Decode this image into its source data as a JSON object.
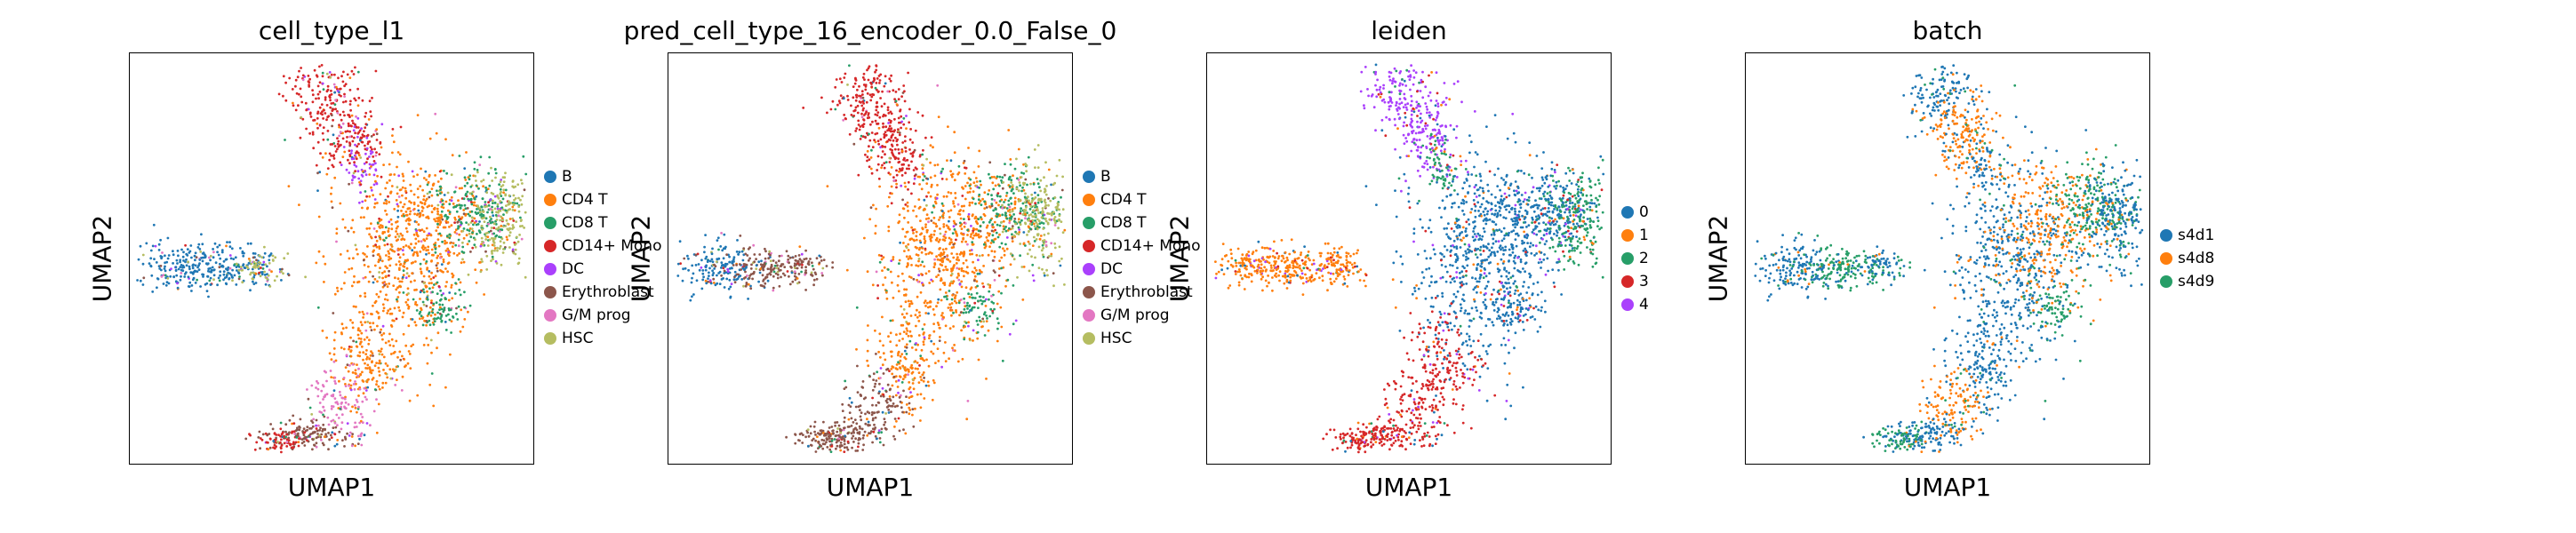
{
  "chart_data": [
    {
      "type": "scatter",
      "title": "cell_type_l1",
      "xlabel": "UMAP1",
      "ylabel": "UMAP2",
      "legend_position": "right",
      "legend": [
        {
          "label": "B",
          "color": "#1f77b4"
        },
        {
          "label": "CD4 T",
          "color": "#ff7f0e"
        },
        {
          "label": "CD8 T",
          "color": "#279e68"
        },
        {
          "label": "CD14+ Mono",
          "color": "#d62728"
        },
        {
          "label": "DC",
          "color": "#aa40fc"
        },
        {
          "label": "Erythroblast",
          "color": "#8c564b"
        },
        {
          "label": "G/M prog",
          "color": "#e377c2"
        },
        {
          "label": "HSC",
          "color": "#b5bd61"
        }
      ]
    },
    {
      "type": "scatter",
      "title": "pred_cell_type_16_encoder_0.0_False_0",
      "xlabel": "UMAP1",
      "ylabel": "UMAP2",
      "legend_position": "right",
      "legend": [
        {
          "label": "B",
          "color": "#1f77b4"
        },
        {
          "label": "CD4 T",
          "color": "#ff7f0e"
        },
        {
          "label": "CD8 T",
          "color": "#279e68"
        },
        {
          "label": "CD14+ Mono",
          "color": "#d62728"
        },
        {
          "label": "DC",
          "color": "#aa40fc"
        },
        {
          "label": "Erythroblast",
          "color": "#8c564b"
        },
        {
          "label": "G/M prog",
          "color": "#e377c2"
        },
        {
          "label": "HSC",
          "color": "#b5bd61"
        }
      ]
    },
    {
      "type": "scatter",
      "title": "leiden",
      "xlabel": "UMAP1",
      "ylabel": "UMAP2",
      "legend_position": "right",
      "legend": [
        {
          "label": "0",
          "color": "#1f77b4"
        },
        {
          "label": "1",
          "color": "#ff7f0e"
        },
        {
          "label": "2",
          "color": "#279e68"
        },
        {
          "label": "3",
          "color": "#d62728"
        },
        {
          "label": "4",
          "color": "#aa40fc"
        }
      ]
    },
    {
      "type": "scatter",
      "title": "batch",
      "xlabel": "UMAP1",
      "ylabel": "UMAP2",
      "legend_position": "right",
      "legend": [
        {
          "label": "s4d1",
          "color": "#1f77b4"
        },
        {
          "label": "s4d8",
          "color": "#ff7f0e"
        },
        {
          "label": "s4d9",
          "color": "#279e68"
        }
      ]
    }
  ]
}
